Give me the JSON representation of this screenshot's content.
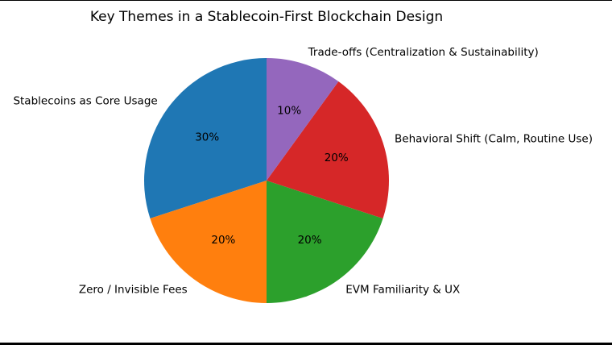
{
  "chart_data": {
    "type": "pie",
    "title": "Key Themes in a Stablecoin-First Blockchain Design",
    "start_angle_deg": 90,
    "direction": "counterclockwise",
    "slices": [
      {
        "label": "Stablecoins as Core Usage",
        "value": 30,
        "pct_label": "30%",
        "color": "#1f77b4"
      },
      {
        "label": "Zero / Invisible Fees",
        "value": 20,
        "pct_label": "20%",
        "color": "#ff7f0e"
      },
      {
        "label": "EVM Familiarity & UX",
        "value": 20,
        "pct_label": "20%",
        "color": "#2ca02c"
      },
      {
        "label": "Behavioral Shift (Calm, Routine Use)",
        "value": 20,
        "pct_label": "20%",
        "color": "#d62728"
      },
      {
        "label": "Trade-offs (Centralization & Sustainability)",
        "value": 10,
        "pct_label": "10%",
        "color": "#9467bd"
      }
    ]
  }
}
